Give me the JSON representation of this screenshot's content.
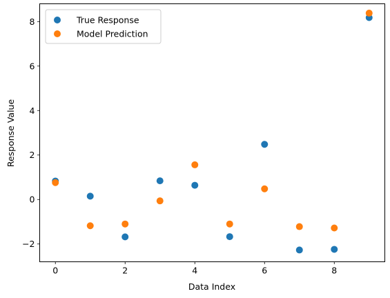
{
  "chart_data": {
    "type": "scatter",
    "xlabel": "Data Index",
    "ylabel": "Response Value",
    "x": [
      0,
      1,
      2,
      3,
      4,
      5,
      6,
      7,
      8,
      9
    ],
    "series": [
      {
        "name": "True Response",
        "color": "#1f77b4",
        "values": [
          0.83,
          0.15,
          -1.68,
          0.84,
          0.64,
          -1.67,
          2.48,
          -2.27,
          -2.24,
          8.18
        ]
      },
      {
        "name": "Model Prediction",
        "color": "#ff7f0e",
        "values": [
          0.76,
          -1.18,
          -1.1,
          -0.06,
          1.56,
          -1.1,
          0.48,
          -1.22,
          -1.28,
          8.38
        ]
      }
    ],
    "xlim": [
      -0.45,
      9.45
    ],
    "ylim": [
      -2.8,
      8.8
    ],
    "xticks": [
      0,
      2,
      4,
      6,
      8
    ],
    "xtick_labels": [
      "0",
      "2",
      "4",
      "6",
      "8"
    ],
    "yticks": [
      -2,
      0,
      2,
      4,
      6,
      8
    ],
    "ytick_labels": [
      "−2",
      "0",
      "2",
      "4",
      "6",
      "8"
    ],
    "grid": false,
    "legend_position": "top-left"
  }
}
